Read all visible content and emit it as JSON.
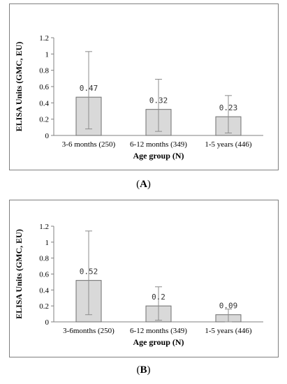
{
  "charts": [
    {
      "caption_letter": "A",
      "chart_data": {
        "type": "bar",
        "categories": [
          "3-6 months (250)",
          "6-12 months (349)",
          "1-5 years (446)"
        ],
        "values": [
          0.47,
          0.32,
          0.23
        ],
        "data_labels": [
          "0.47",
          "0.32",
          "0.23"
        ],
        "error_low": [
          0.08,
          0.05,
          0.03
        ],
        "error_high": [
          1.03,
          0.69,
          0.49
        ],
        "ylim": [
          0,
          1.2
        ],
        "yticks": [
          "0",
          "0.2",
          "0.4",
          "0.6",
          "0.8",
          "1",
          "1.2"
        ],
        "ylabel": "ELISA Units (GMC, EU)",
        "xlabel": "Age group (N)",
        "bar_color": "#d9d9d9",
        "grid": false
      }
    },
    {
      "caption_letter": "B",
      "chart_data": {
        "type": "bar",
        "categories": [
          "3-6months (250)",
          "6-12 months (349)",
          "1-5 years (446)"
        ],
        "values": [
          0.52,
          0.2,
          0.09
        ],
        "data_labels": [
          "0.52",
          "0.2",
          "0.09"
        ],
        "error_low": [
          0.09,
          0.02,
          0.0
        ],
        "error_high": [
          1.14,
          0.44,
          0.16
        ],
        "ylim": [
          0,
          1.2
        ],
        "yticks": [
          "0",
          "0.2",
          "0.4",
          "0.6",
          "0.8",
          "1",
          "1.2"
        ],
        "ylabel": "ELISA Units (GMC, EU)",
        "xlabel": "Age group (N)",
        "bar_color": "#d9d9d9",
        "grid": false
      }
    }
  ]
}
